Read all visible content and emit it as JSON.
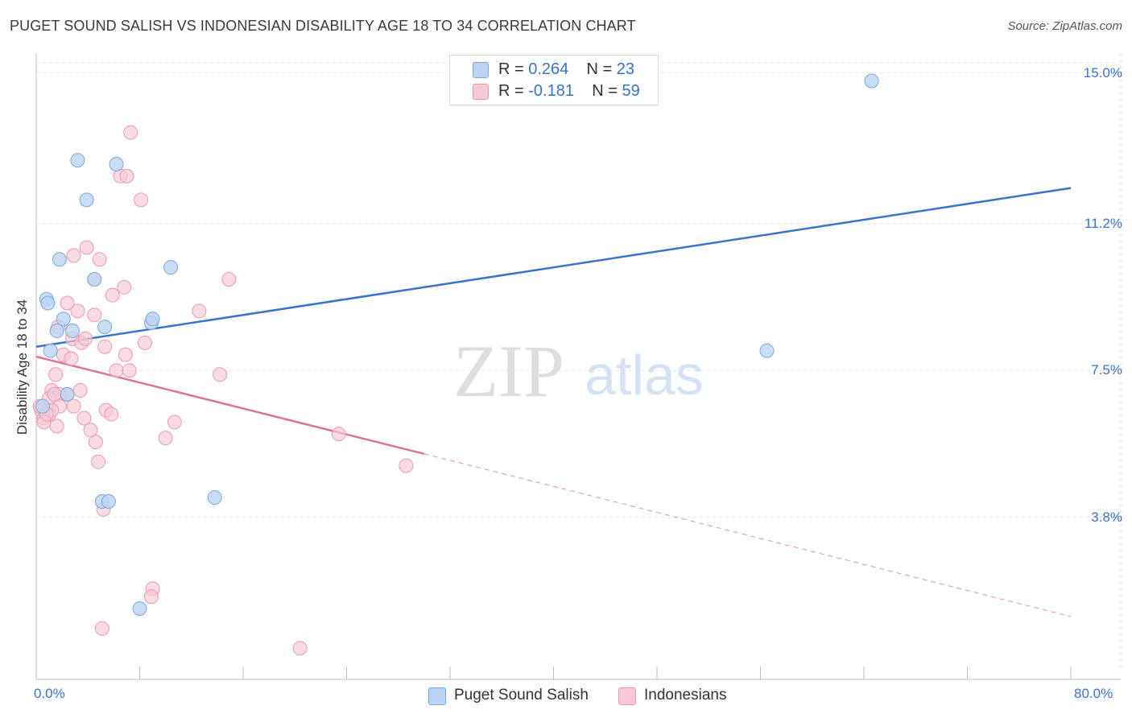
{
  "title": "PUGET SOUND SALISH VS INDONESIAN DISABILITY AGE 18 TO 34 CORRELATION CHART",
  "source": "Source: ZipAtlas.com",
  "watermark": {
    "zip": "ZIP",
    "atlas": "atlas"
  },
  "colors": {
    "blue_point_fill": "#bcd4f3",
    "blue_point_stroke": "#7ea6dc",
    "pink_point_fill": "#f8c8d6",
    "pink_point_stroke": "#e899b2",
    "blue_line": "#3574d0",
    "pink_line": "#e0709a",
    "tick_label": "#3a72c9"
  },
  "legend": {
    "blue": {
      "r_label": "R = ",
      "r_value": "0.264",
      "n_label": "N = ",
      "n_value": "23"
    },
    "pink": {
      "r_label": "R = ",
      "r_value": "-0.181",
      "n_label": "N = ",
      "n_value": "59"
    }
  },
  "bottom_legend": {
    "blue": "Puget Sound Salish",
    "pink": "Indonesians"
  },
  "chart_data": {
    "type": "scatter",
    "title": "PUGET SOUND SALISH VS INDONESIAN DISABILITY AGE 18 TO 34 CORRELATION CHART",
    "xlabel": "",
    "ylabel": "Disability Age 18 to 34",
    "xlim": [
      0,
      80
    ],
    "ylim": [
      0,
      15.5
    ],
    "x_tick_labels": [
      "0.0%",
      "80.0%"
    ],
    "y_ticks": [
      3.8,
      7.5,
      11.2,
      15.0
    ],
    "y_tick_labels": [
      "3.8%",
      "7.5%",
      "11.2%",
      "15.0%"
    ],
    "grid": true,
    "series": [
      {
        "name": "Puget Sound Salish",
        "color": "blue",
        "points": [
          [
            3.2,
            12.8
          ],
          [
            6.2,
            12.7
          ],
          [
            3.9,
            11.8
          ],
          [
            1.8,
            10.3
          ],
          [
            10.4,
            10.1
          ],
          [
            4.5,
            9.8
          ],
          [
            0.8,
            9.3
          ],
          [
            0.9,
            9.2
          ],
          [
            2.1,
            8.8
          ],
          [
            1.6,
            8.5
          ],
          [
            2.8,
            8.5
          ],
          [
            5.3,
            8.6
          ],
          [
            8.9,
            8.7
          ],
          [
            9.0,
            8.8
          ],
          [
            1.1,
            8.0
          ],
          [
            2.4,
            6.9
          ],
          [
            0.5,
            6.6
          ],
          [
            5.1,
            4.2
          ],
          [
            5.6,
            4.2
          ],
          [
            13.8,
            4.3
          ],
          [
            8.0,
            1.5
          ],
          [
            56.5,
            8.0
          ],
          [
            64.6,
            14.8
          ]
        ],
        "trend": {
          "x": [
            0,
            80
          ],
          "y": [
            8.1,
            12.1
          ]
        }
      },
      {
        "name": "Indonesians",
        "color": "pink",
        "points": [
          [
            7.3,
            13.5
          ],
          [
            6.5,
            12.4
          ],
          [
            7.0,
            12.4
          ],
          [
            8.1,
            11.8
          ],
          [
            3.9,
            10.6
          ],
          [
            2.9,
            10.4
          ],
          [
            4.9,
            10.3
          ],
          [
            14.9,
            9.8
          ],
          [
            4.5,
            9.8
          ],
          [
            6.8,
            9.6
          ],
          [
            5.9,
            9.4
          ],
          [
            2.4,
            9.2
          ],
          [
            3.2,
            9.0
          ],
          [
            4.5,
            8.9
          ],
          [
            12.6,
            9.0
          ],
          [
            1.7,
            8.6
          ],
          [
            2.8,
            8.3
          ],
          [
            3.5,
            8.2
          ],
          [
            3.8,
            8.3
          ],
          [
            8.4,
            8.2
          ],
          [
            5.3,
            8.1
          ],
          [
            6.9,
            7.9
          ],
          [
            2.1,
            7.9
          ],
          [
            2.7,
            7.8
          ],
          [
            6.2,
            7.5
          ],
          [
            7.2,
            7.5
          ],
          [
            1.5,
            7.4
          ],
          [
            14.2,
            7.4
          ],
          [
            3.4,
            7.0
          ],
          [
            1.2,
            7.0
          ],
          [
            1.8,
            6.9
          ],
          [
            1.0,
            6.8
          ],
          [
            2.4,
            6.9
          ],
          [
            1.8,
            6.6
          ],
          [
            2.9,
            6.6
          ],
          [
            0.4,
            6.5
          ],
          [
            5.4,
            6.5
          ],
          [
            1.0,
            6.4
          ],
          [
            0.6,
            6.3
          ],
          [
            3.7,
            6.3
          ],
          [
            5.8,
            6.4
          ],
          [
            0.6,
            6.2
          ],
          [
            10.7,
            6.2
          ],
          [
            1.6,
            6.1
          ],
          [
            4.2,
            6.0
          ],
          [
            23.4,
            5.9
          ],
          [
            10.0,
            5.8
          ],
          [
            4.6,
            5.7
          ],
          [
            4.8,
            5.2
          ],
          [
            28.6,
            5.1
          ],
          [
            5.2,
            4.0
          ],
          [
            9.0,
            2.0
          ],
          [
            8.9,
            1.8
          ],
          [
            5.1,
            1.0
          ],
          [
            20.4,
            0.5
          ],
          [
            0.3,
            6.6
          ],
          [
            1.2,
            6.5
          ],
          [
            0.8,
            6.4
          ],
          [
            1.4,
            6.9
          ]
        ],
        "trend": {
          "x": [
            0,
            30
          ],
          "y": [
            7.85,
            5.4
          ]
        },
        "trend_extrapolated": {
          "x": [
            30,
            80
          ],
          "y": [
            5.4,
            1.3
          ]
        }
      }
    ]
  }
}
